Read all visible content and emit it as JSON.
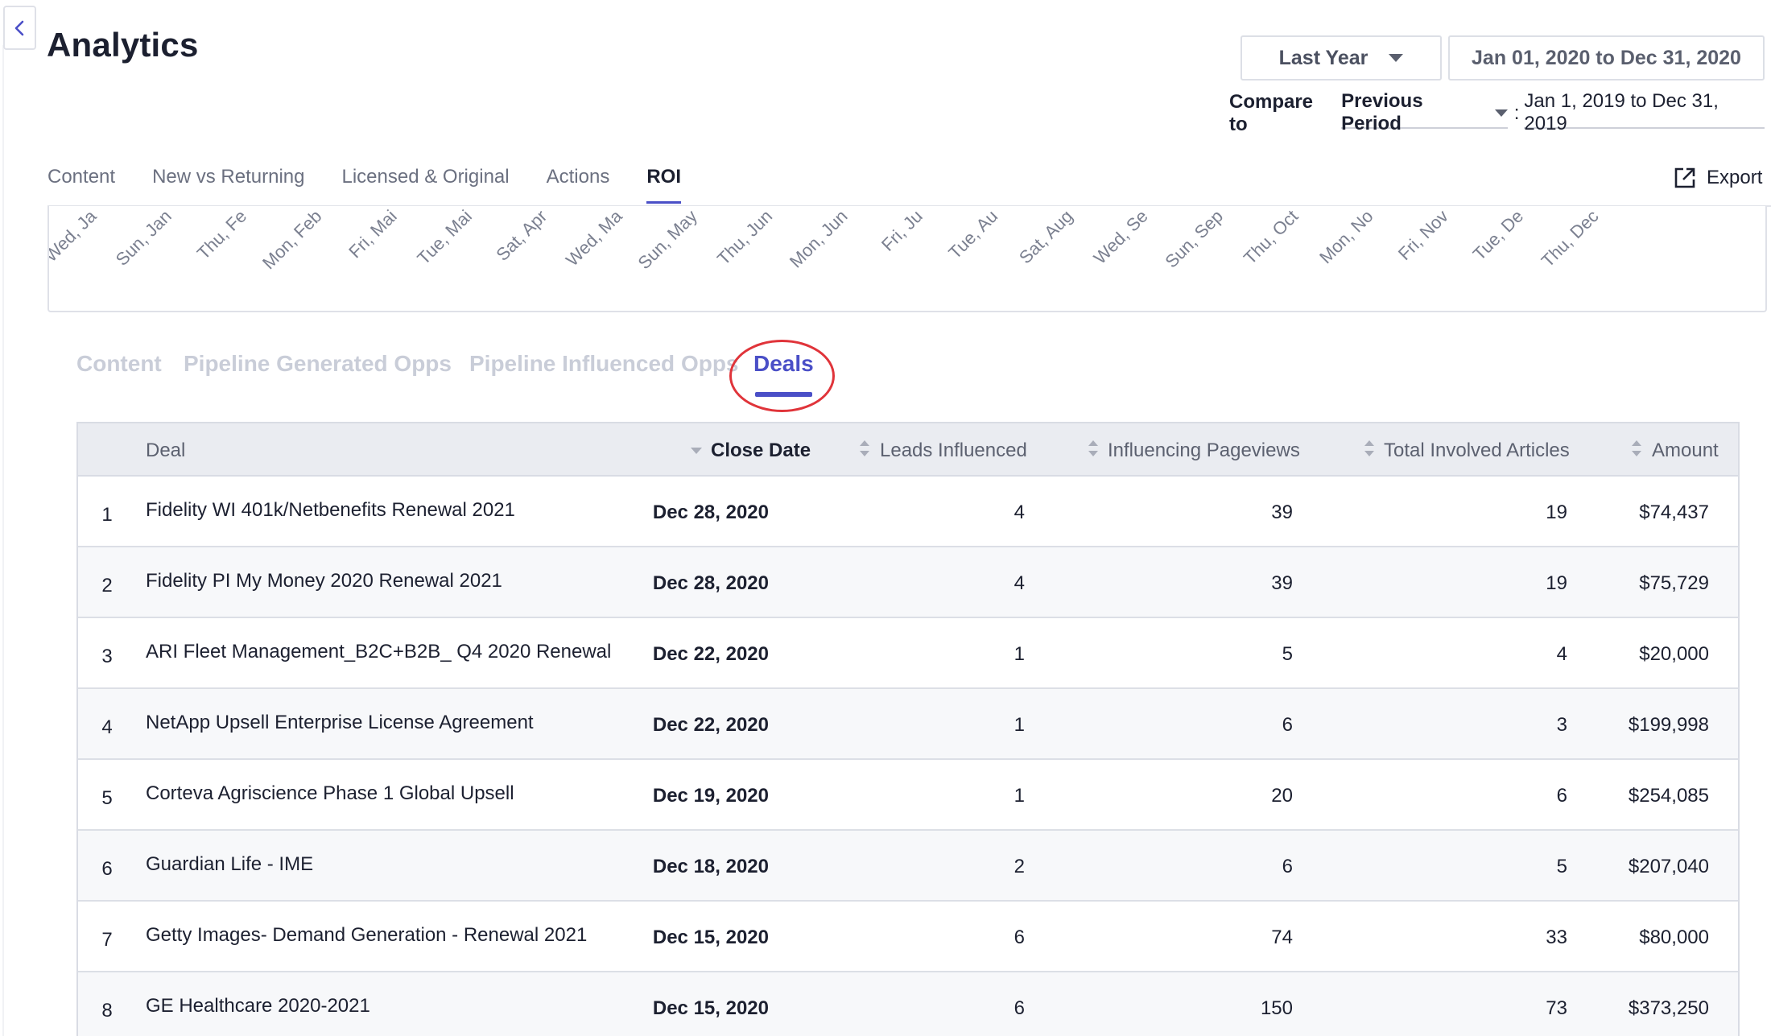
{
  "page": {
    "title": "Analytics"
  },
  "header": {
    "period": "Last Year",
    "date_range": "Jan 01, 2020 to Dec 31, 2020",
    "compare_label": "Compare to",
    "compare_value": "Previous Period",
    "compare_colon": ":",
    "compare_range": "Jan 1, 2019 to Dec 31, 2019"
  },
  "tabs": [
    "Content",
    "New vs Returning",
    "Licensed & Original",
    "Actions",
    "ROI"
  ],
  "active_tab": "ROI",
  "export_label": "Export",
  "chart_axis": {
    "tick_labels": [
      "Wed, Ja",
      "Sun, Jan",
      "Thu, Fe",
      "Mon, Feb",
      "Fri, Mai",
      "Tue, Mai",
      "Sat, Apr",
      "Wed, Ma",
      "Sun, May",
      "Thu, Jun",
      "Mon, Jun",
      "Fri, Ju",
      "Tue, Au",
      "Sat, Aug",
      "Wed, Se",
      "Sun, Sep",
      "Thu, Oct",
      "Mon, No",
      "Fri, Nov",
      "Tue, De",
      "Thu, Dec"
    ]
  },
  "sub_tabs": [
    "Content",
    "Pipeline Generated Opps",
    "Pipeline Influenced Opps",
    "Deals"
  ],
  "active_sub_tab": "Deals",
  "table": {
    "columns": [
      "Deal",
      "Close Date",
      "Leads Influenced",
      "Influencing Pageviews",
      "Total Involved Articles",
      "Amount"
    ],
    "rows": [
      {
        "index": "1",
        "deal": "Fidelity WI 401k/Netbenefits Renewal 2021",
        "close_date": "Dec 28, 2020",
        "leads": "4",
        "pageviews": "39",
        "articles": "19",
        "amount": "$74,437"
      },
      {
        "index": "2",
        "deal": "Fidelity PI My Money 2020 Renewal 2021",
        "close_date": "Dec 28, 2020",
        "leads": "4",
        "pageviews": "39",
        "articles": "19",
        "amount": "$75,729"
      },
      {
        "index": "3",
        "deal": "ARI Fleet Management_B2C+B2B_ Q4 2020 Renewal",
        "close_date": "Dec 22, 2020",
        "leads": "1",
        "pageviews": "5",
        "articles": "4",
        "amount": "$20,000"
      },
      {
        "index": "4",
        "deal": "NetApp Upsell Enterprise License Agreement",
        "close_date": "Dec 22, 2020",
        "leads": "1",
        "pageviews": "6",
        "articles": "3",
        "amount": "$199,998"
      },
      {
        "index": "5",
        "deal": "Corteva Agriscience Phase 1 Global Upsell",
        "close_date": "Dec 19, 2020",
        "leads": "1",
        "pageviews": "20",
        "articles": "6",
        "amount": "$254,085"
      },
      {
        "index": "6",
        "deal": "Guardian Life - IME",
        "close_date": "Dec 18, 2020",
        "leads": "2",
        "pageviews": "6",
        "articles": "5",
        "amount": "$207,040"
      },
      {
        "index": "7",
        "deal": "Getty Images- Demand Generation - Renewal 2021",
        "close_date": "Dec 15, 2020",
        "leads": "6",
        "pageviews": "74",
        "articles": "33",
        "amount": "$80,000"
      },
      {
        "index": "8",
        "deal": "GE Healthcare 2020-2021",
        "close_date": "Dec 15, 2020",
        "leads": "6",
        "pageviews": "150",
        "articles": "73",
        "amount": "$373,250"
      }
    ]
  },
  "colors": {
    "accent": "#4a4fc7",
    "highlight_ring": "#e0343a",
    "header_bg": "#eaecf1",
    "alt_row": "#f7f8fa"
  },
  "icons": {
    "back": "chevron-left-icon",
    "export": "external-link-icon",
    "dropdown": "caret-down-icon",
    "sort": "sort-icon"
  }
}
